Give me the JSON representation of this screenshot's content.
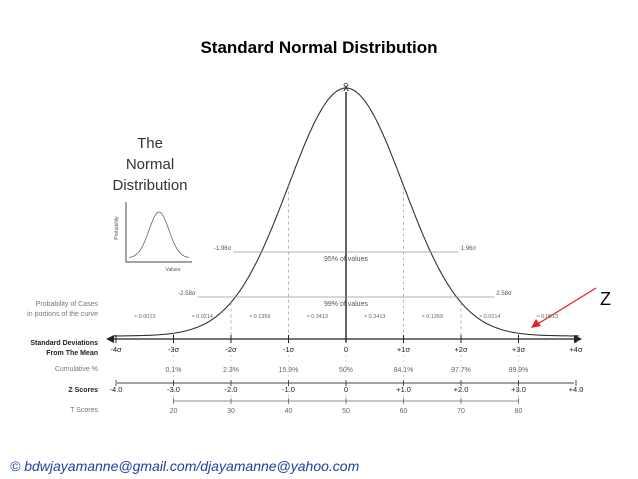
{
  "slide": {
    "title": "Standard Normal Distribution",
    "footer": "© bdwjayamanne@gmail.com/djayamanne@yahoo.com",
    "callout_label": "Z",
    "callout_color": "#e8201f"
  },
  "figure": {
    "panel_title_lines": [
      "The",
      "Normal",
      "Distribution"
    ],
    "mean_symbol": "x̄",
    "inset": {
      "ylabel": "Probability",
      "xlabel": "Values"
    },
    "band_95": {
      "label": "95% of values",
      "left": "-1.96σ",
      "right": "1.96σ",
      "sd": 1.96
    },
    "band_99": {
      "label": "99% of values",
      "left": "-2.58σ",
      "right": "2.58σ",
      "sd": 2.58
    },
    "rows": {
      "probability": {
        "label_lines": [
          "Probability of Cases",
          "in portions of the curve"
        ],
        "values": [
          "≈ 0.0013",
          "≈ 0.0214",
          "≈ 0.1359",
          "≈ 0.3413",
          "≈ 0.3413",
          "≈ 0.1359",
          "≈ 0.0214",
          "≈ 0.0013"
        ]
      },
      "std_dev": {
        "label_lines": [
          "Standard Deviations",
          "From The Mean"
        ],
        "values": [
          "-4σ",
          "-3σ",
          "-2σ",
          "-1σ",
          "0",
          "+1σ",
          "+2σ",
          "+3σ",
          "+4σ"
        ]
      },
      "cumulative": {
        "label": "Cumulative %",
        "values": [
          "0.1%",
          "2.3%",
          "15.9%",
          "50%",
          "84.1%",
          "97.7%",
          "99.9%"
        ]
      },
      "z_scores": {
        "label": "Z Scores",
        "values": [
          "-4.0",
          "-3.0",
          "-2.0",
          "-1.0",
          "0",
          "+1.0",
          "+2.0",
          "+3.0",
          "+4.0"
        ]
      },
      "t_scores": {
        "label": "T Scores",
        "values": [
          "20",
          "30",
          "40",
          "50",
          "60",
          "70",
          "80"
        ]
      }
    }
  }
}
